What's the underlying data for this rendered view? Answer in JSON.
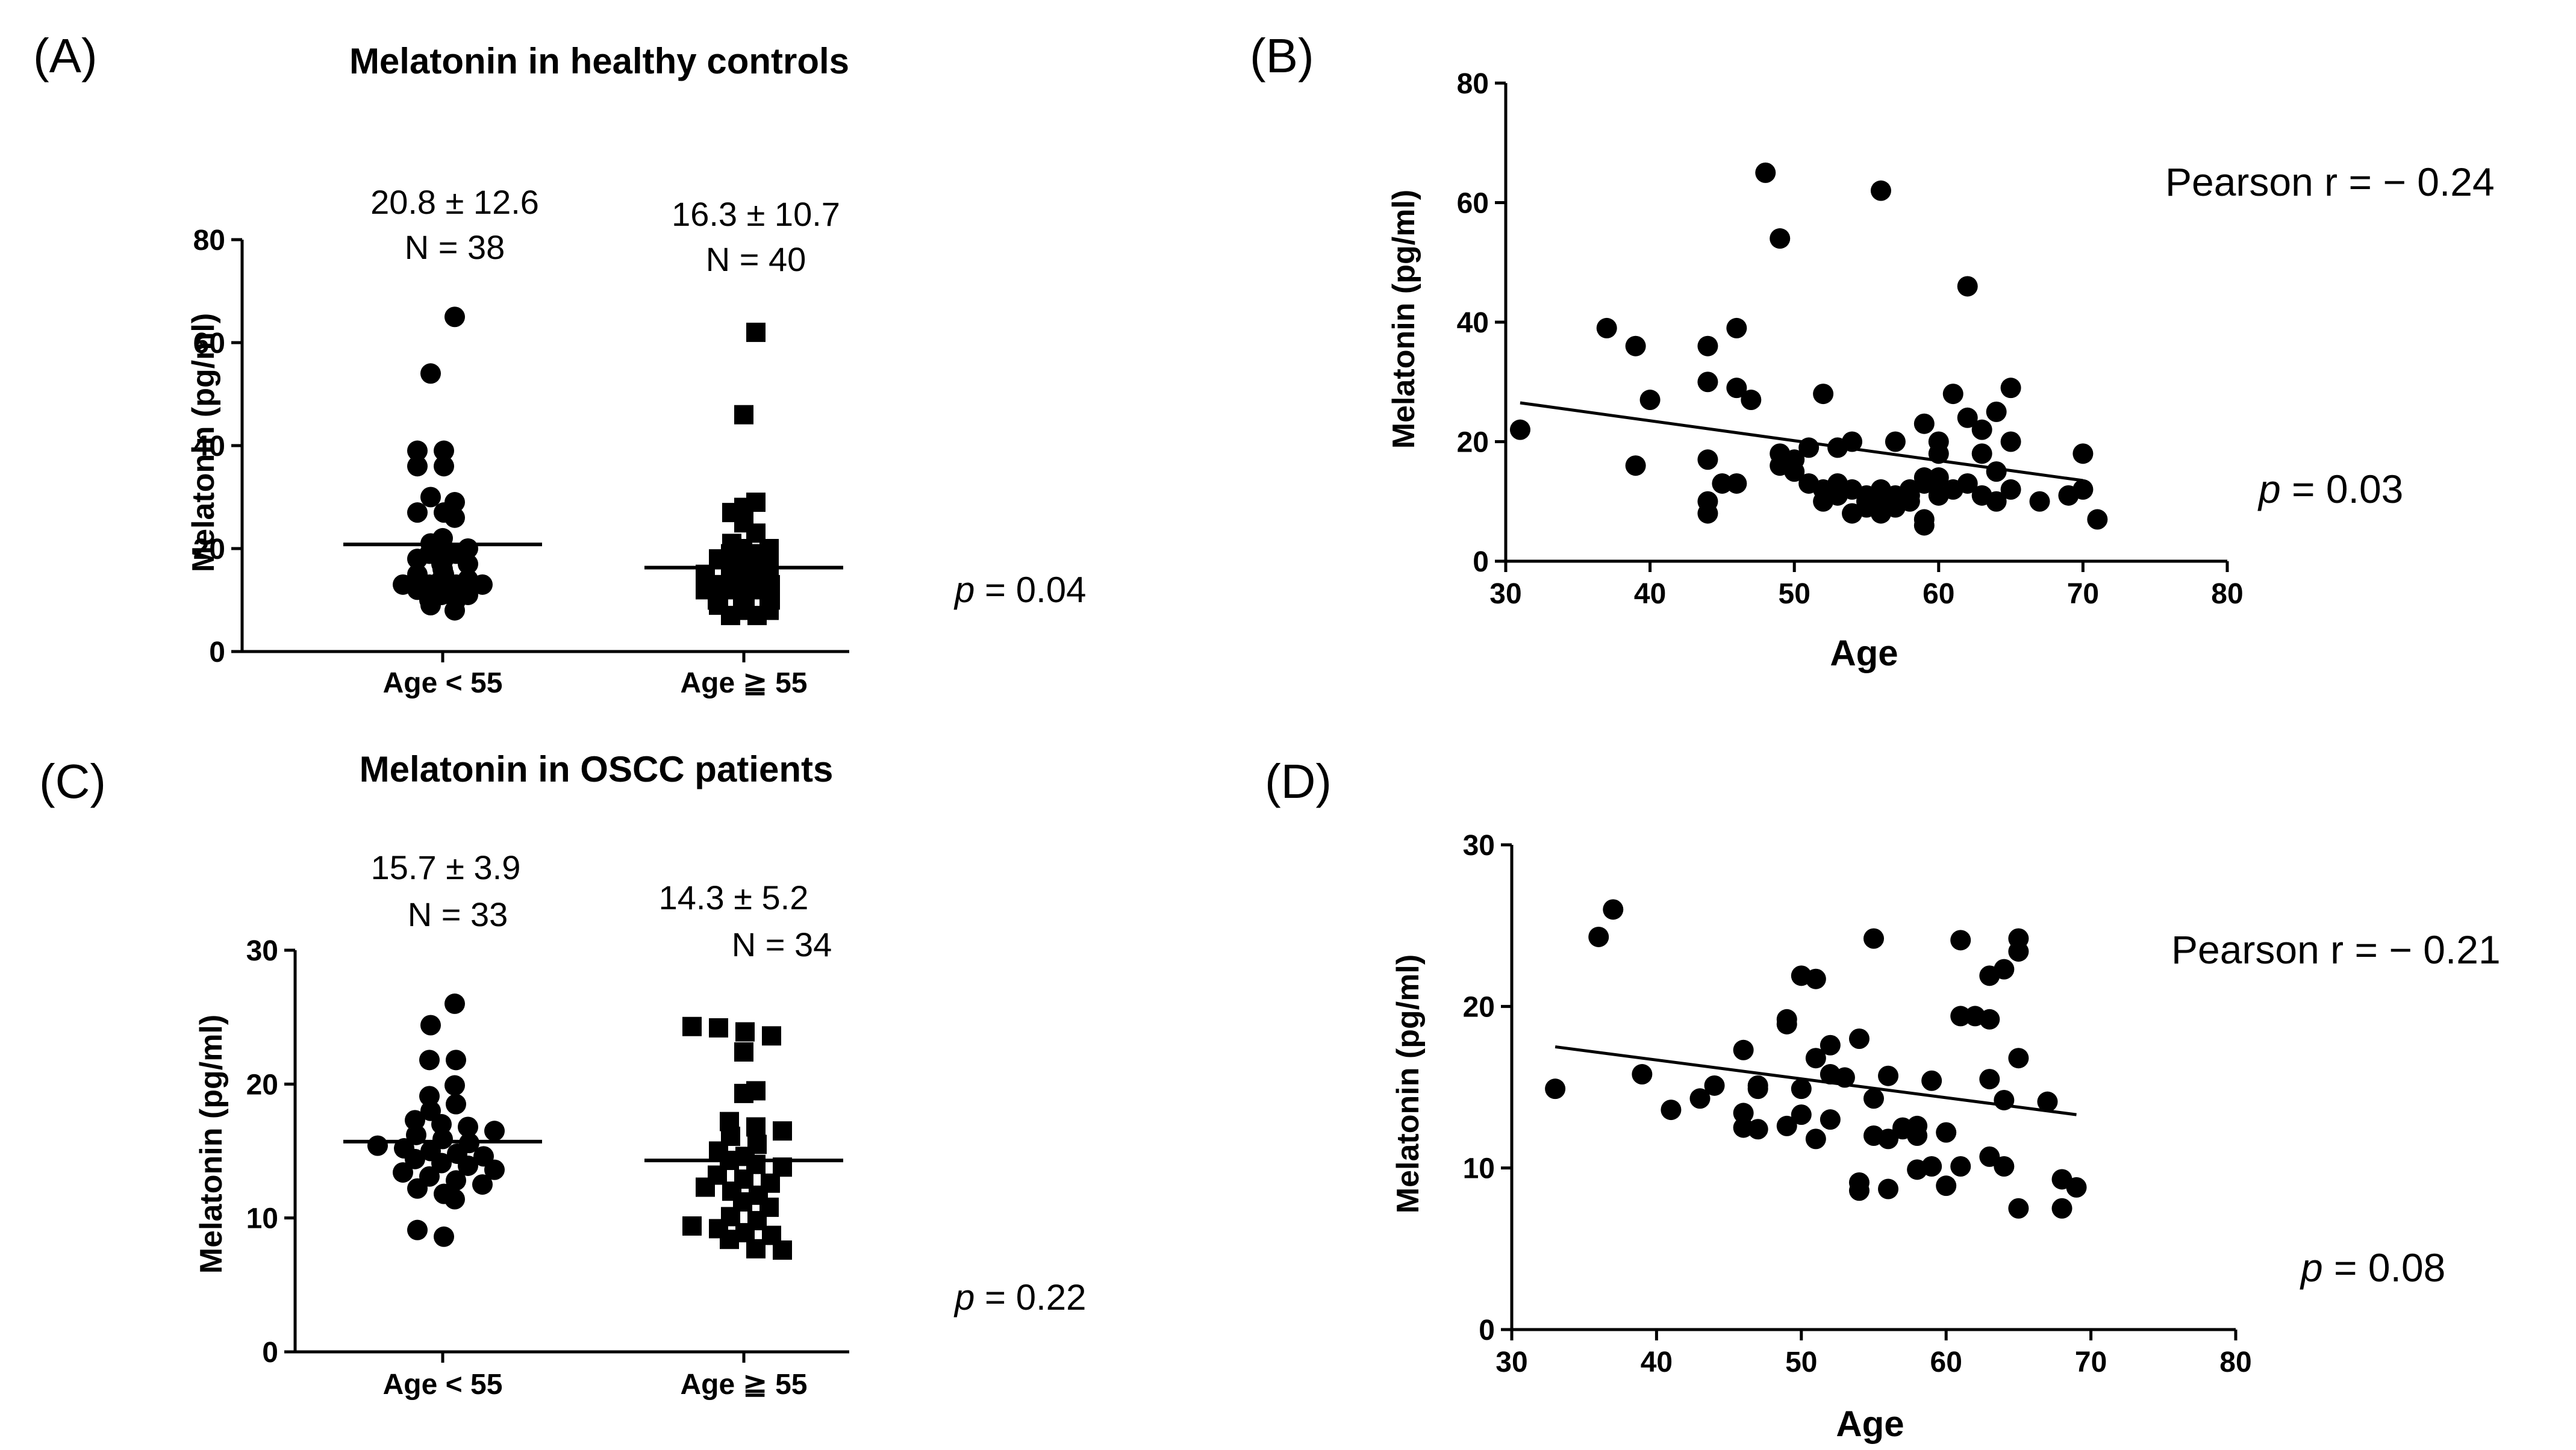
{
  "chart_data": [
    {
      "id": "A",
      "type": "scatter",
      "panel_label": "(A)",
      "title": "Melatonin in healthy controls",
      "ylabel": "Melatonin (pg/ml)",
      "ylim": [
        0,
        80
      ],
      "yticks": [
        "0",
        "20",
        "40",
        "60",
        "80"
      ],
      "categories": [
        "Age < 55",
        "Age ≧ 55"
      ],
      "annotations": [
        {
          "line1": "20.8 ± 12.6",
          "line2": "N = 38"
        },
        {
          "line1": "16.3 ± 10.7",
          "line2": "N = 40"
        }
      ],
      "p_label": "p",
      "p_value": " = 0.04",
      "series": [
        {
          "name": "Age < 55",
          "marker": "circle",
          "mean": 20.8,
          "values": [
            65,
            54,
            39,
            39,
            36,
            36,
            30,
            29,
            27,
            27,
            26,
            22,
            21,
            20,
            20,
            19,
            19,
            18,
            18,
            17,
            17,
            16,
            15,
            15,
            14,
            14,
            13,
            13,
            13,
            13,
            12,
            12,
            11,
            11,
            10,
            10,
            9,
            8
          ]
        },
        {
          "name": "Age ≧ 55",
          "marker": "square",
          "mean": 16.3,
          "values": [
            62,
            46,
            29,
            28,
            27,
            25,
            23,
            21,
            20,
            20,
            19,
            19,
            18,
            18,
            17,
            17,
            16,
            16,
            15,
            15,
            15,
            14,
            14,
            13,
            13,
            13,
            12,
            12,
            12,
            11,
            11,
            10,
            10,
            10,
            9,
            9,
            8,
            8,
            7,
            7
          ]
        }
      ]
    },
    {
      "id": "B",
      "type": "scatter",
      "panel_label": "(B)",
      "xlabel": "Age",
      "ylabel": "Melatonin (pg/ml)",
      "xlim": [
        30,
        80
      ],
      "ylim": [
        0,
        80
      ],
      "xticks": [
        "30",
        "40",
        "50",
        "60",
        "70",
        "80"
      ],
      "yticks": [
        "0",
        "20",
        "40",
        "60",
        "80"
      ],
      "pearson": "Pearson r = − 0.24",
      "p_label": "p",
      "p_value": " = 0.03",
      "trend": {
        "x": [
          31,
          70
        ],
        "y": [
          26.5,
          13.5
        ]
      },
      "x": [
        31,
        37,
        39,
        39,
        40,
        44,
        44,
        44,
        44,
        44,
        45,
        46,
        46,
        46,
        47,
        48,
        49,
        49,
        49,
        50,
        50,
        51,
        51,
        52,
        52,
        52,
        53,
        53,
        53,
        54,
        54,
        54,
        55,
        55,
        55,
        56,
        56,
        56,
        56,
        57,
        57,
        57,
        58,
        58,
        58,
        59,
        59,
        59,
        59,
        59,
        60,
        60,
        60,
        60,
        61,
        61,
        62,
        62,
        62,
        63,
        63,
        63,
        64,
        64,
        64,
        65,
        65,
        65,
        67,
        69,
        70,
        70,
        71
      ],
      "y": [
        22,
        39,
        36,
        16,
        27,
        36,
        30,
        17,
        10,
        8,
        13,
        39,
        29,
        13,
        27,
        65,
        54,
        18,
        16,
        15,
        17,
        19,
        13,
        28,
        12,
        10,
        19,
        13,
        11,
        20,
        12,
        8,
        11,
        10,
        9,
        62,
        12,
        10,
        8,
        20,
        11,
        9,
        12,
        11,
        10,
        23,
        14,
        13,
        7,
        6,
        20,
        18,
        14,
        11,
        28,
        12,
        46,
        24,
        13,
        22,
        18,
        11,
        25,
        15,
        10,
        29,
        20,
        12,
        10,
        11,
        18,
        12,
        7
      ]
    },
    {
      "id": "C",
      "type": "scatter",
      "panel_label": "(C)",
      "title": "Melatonin in OSCC patients",
      "ylabel": "Melatonin (pg/ml)",
      "ylim": [
        0,
        30
      ],
      "yticks": [
        "0",
        "10",
        "20",
        "30"
      ],
      "categories": [
        "Age < 55",
        "Age ≧ 55"
      ],
      "annotations": [
        {
          "line1": "15.7 ± 3.9",
          "line2": "N = 33"
        },
        {
          "line1": "14.3 ± 5.2",
          "line2": "N = 34"
        }
      ],
      "p_label": "p",
      "p_value": " = 0.22",
      "series": [
        {
          "name": "Age < 55",
          "marker": "circle",
          "mean": 15.7,
          "values": [
            26,
            24.4,
            21.8,
            21.8,
            19.9,
            19.1,
            18.5,
            18.0,
            17.3,
            17.0,
            16.8,
            16.5,
            16.2,
            15.9,
            15.6,
            15.4,
            15.2,
            15.0,
            14.8,
            14.6,
            14.4,
            14.1,
            13.9,
            13.6,
            13.4,
            13.1,
            12.8,
            12.5,
            12.2,
            11.8,
            11.4,
            9.1,
            8.6
          ]
        },
        {
          "name": "Age ≧ 55",
          "marker": "square",
          "mean": 14.3,
          "values": [
            24.3,
            24.2,
            23.9,
            23.6,
            22.4,
            19.5,
            19.3,
            17.2,
            16.8,
            16.5,
            16.1,
            15.5,
            15.0,
            14.6,
            14.3,
            14.0,
            13.8,
            13.2,
            12.9,
            12.6,
            12.3,
            12.0,
            11.7,
            11.2,
            10.8,
            10.1,
            9.8,
            9.4,
            9.2,
            8.9,
            8.7,
            8.4,
            7.7,
            7.6
          ]
        }
      ]
    },
    {
      "id": "D",
      "type": "scatter",
      "panel_label": "(D)",
      "xlabel": "Age",
      "ylabel": "Melatonin (pg/ml)",
      "xlim": [
        30,
        80
      ],
      "ylim": [
        0,
        30
      ],
      "xticks": [
        "30",
        "40",
        "50",
        "60",
        "70",
        "80"
      ],
      "yticks": [
        "0",
        "10",
        "20",
        "30"
      ],
      "pearson": "Pearson r = − 0.21",
      "p_label": "p",
      "p_value": " = 0.08",
      "trend": {
        "x": [
          33,
          69
        ],
        "y": [
          17.5,
          13.3
        ]
      },
      "x": [
        33,
        36,
        37,
        39,
        41,
        43,
        44,
        46,
        46,
        46,
        47,
        47,
        47,
        49,
        49,
        49,
        50,
        50,
        50,
        51,
        51,
        51,
        52,
        52,
        52,
        53,
        54,
        54,
        54,
        55,
        55,
        55,
        56,
        56,
        56,
        57,
        57,
        58,
        58,
        58,
        59,
        59,
        60,
        60,
        61,
        61,
        61,
        62,
        63,
        63,
        63,
        63,
        64,
        64,
        64,
        65,
        65,
        65,
        65,
        67,
        68,
        68,
        69
      ],
      "y": [
        14.9,
        24.3,
        26.0,
        15.8,
        13.6,
        14.3,
        15.1,
        17.3,
        13.4,
        12.5,
        15.1,
        14.9,
        12.4,
        19.2,
        18.9,
        12.6,
        21.9,
        14.9,
        13.3,
        21.7,
        16.8,
        11.8,
        17.6,
        15.8,
        13.0,
        15.6,
        18.0,
        9.1,
        8.6,
        24.2,
        14.3,
        12.0,
        15.7,
        11.8,
        8.7,
        12.5,
        12.4,
        12.6,
        12.0,
        9.9,
        15.4,
        10.1,
        12.2,
        8.9,
        24.1,
        19.4,
        10.1,
        19.4,
        21.9,
        19.2,
        15.5,
        10.7,
        22.3,
        14.2,
        10.1,
        24.2,
        23.4,
        16.8,
        7.5,
        14.1,
        9.3,
        7.5,
        8.8
      ]
    }
  ]
}
